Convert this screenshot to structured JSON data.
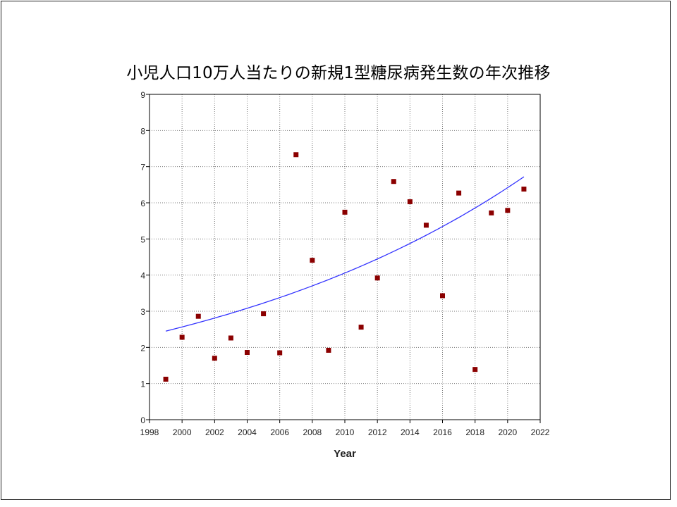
{
  "chart_data": {
    "type": "scatter",
    "title": "小児人口10万人当たりの新規1型糖尿病発生数の年次推移",
    "xlabel": "Year",
    "ylabel": "",
    "xlim": [
      1998,
      2022
    ],
    "ylim": [
      0,
      9
    ],
    "x_ticks": [
      1998,
      2000,
      2002,
      2004,
      2006,
      2008,
      2010,
      2012,
      2014,
      2016,
      2018,
      2020,
      2022
    ],
    "y_ticks": [
      0,
      1,
      2,
      3,
      4,
      5,
      6,
      7,
      8,
      9
    ],
    "grid": true,
    "marker_color": "#8b0000",
    "trend_color": "#3333ff",
    "points": [
      {
        "x": 1999,
        "y": 1.12
      },
      {
        "x": 2000,
        "y": 2.28
      },
      {
        "x": 2001,
        "y": 2.86
      },
      {
        "x": 2002,
        "y": 1.7
      },
      {
        "x": 2003,
        "y": 2.26
      },
      {
        "x": 2004,
        "y": 1.86
      },
      {
        "x": 2005,
        "y": 2.93
      },
      {
        "x": 2006,
        "y": 1.85
      },
      {
        "x": 2007,
        "y": 7.33
      },
      {
        "x": 2008,
        "y": 4.41
      },
      {
        "x": 2009,
        "y": 1.92
      },
      {
        "x": 2010,
        "y": 5.74
      },
      {
        "x": 2011,
        "y": 2.56
      },
      {
        "x": 2012,
        "y": 3.92
      },
      {
        "x": 2013,
        "y": 6.59
      },
      {
        "x": 2014,
        "y": 6.03
      },
      {
        "x": 2015,
        "y": 5.38
      },
      {
        "x": 2016,
        "y": 3.43
      },
      {
        "x": 2017,
        "y": 6.27
      },
      {
        "x": 2018,
        "y": 1.39
      },
      {
        "x": 2019,
        "y": 5.72
      },
      {
        "x": 2020,
        "y": 5.79
      },
      {
        "x": 2021,
        "y": 6.38
      }
    ],
    "trend": {
      "type": "exponential",
      "x_start": 1999,
      "x_end": 2021,
      "y_start": 2.45,
      "y_end": 6.72
    }
  }
}
